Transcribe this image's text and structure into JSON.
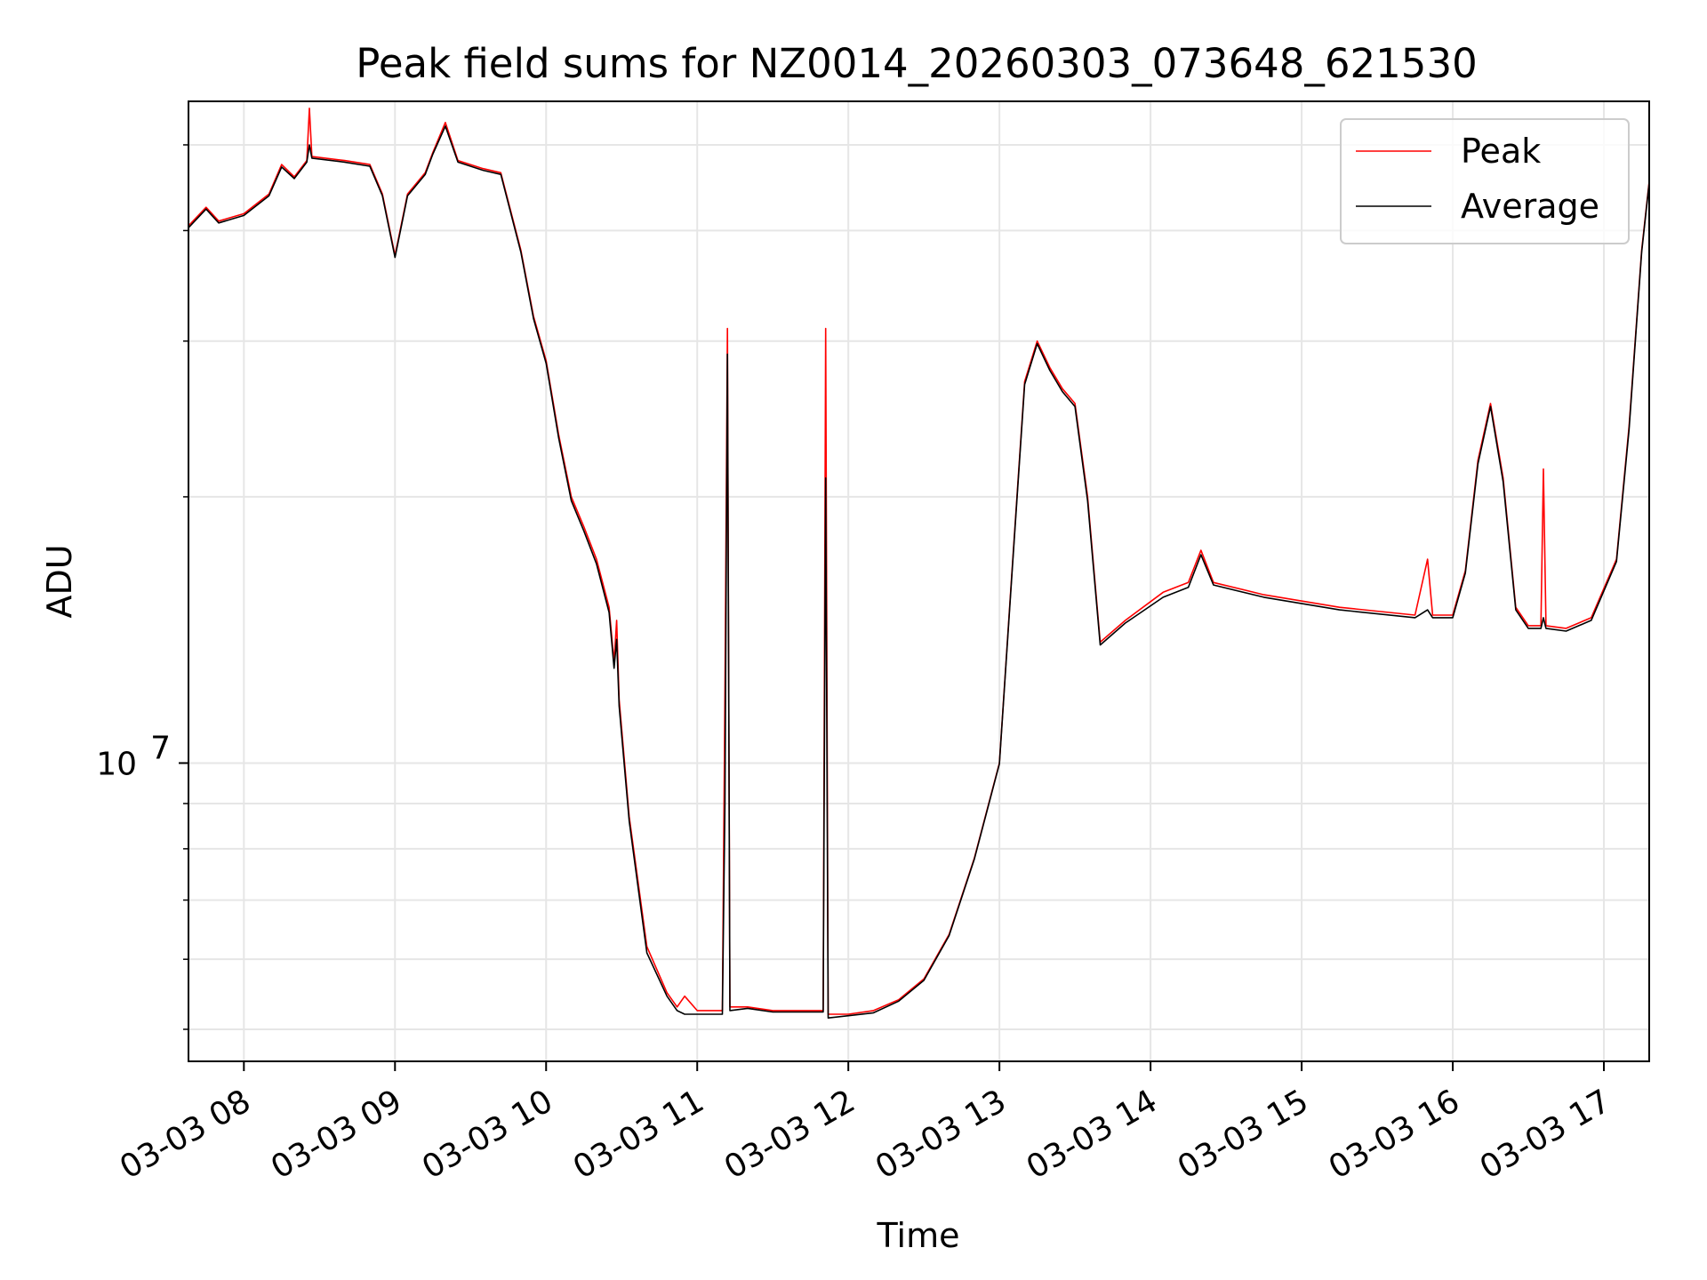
{
  "chart_data": {
    "type": "line",
    "title": "Peak field sums for NZ0014_20260303_073648_621530",
    "xlabel": "Time",
    "ylabel": "ADU",
    "yscale": "log",
    "grid": true,
    "legend_position": "top-right",
    "xlim": [
      "2026-03-03T07:38",
      "2026-03-03T17:18"
    ],
    "ylim": [
      4600000,
      56000000
    ],
    "x_ticks": [
      {
        "t": "2026-03-03T08:00",
        "label": "03-03 08"
      },
      {
        "t": "2026-03-03T09:00",
        "label": "03-03 09"
      },
      {
        "t": "2026-03-03T10:00",
        "label": "03-03 10"
      },
      {
        "t": "2026-03-03T11:00",
        "label": "03-03 11"
      },
      {
        "t": "2026-03-03T12:00",
        "label": "03-03 12"
      },
      {
        "t": "2026-03-03T13:00",
        "label": "03-03 13"
      },
      {
        "t": "2026-03-03T14:00",
        "label": "03-03 14"
      },
      {
        "t": "2026-03-03T15:00",
        "label": "03-03 15"
      },
      {
        "t": "2026-03-03T16:00",
        "label": "03-03 16"
      },
      {
        "t": "2026-03-03T17:00",
        "label": "03-03 17"
      }
    ],
    "y_major_ticks": [
      {
        "value": 10000000,
        "base": "10",
        "exp": "7"
      }
    ],
    "y_minor_ticks": [
      5000000,
      6000000,
      7000000,
      8000000,
      9000000,
      20000000,
      30000000,
      40000000,
      50000000
    ],
    "series": [
      {
        "name": "Peak",
        "color": "#ff0000",
        "points": [
          [
            "2026-03-03T07:38",
            40500000
          ],
          [
            "2026-03-03T07:45",
            42500000
          ],
          [
            "2026-03-03T07:50",
            41000000
          ],
          [
            "2026-03-03T08:00",
            41800000
          ],
          [
            "2026-03-03T08:10",
            44000000
          ],
          [
            "2026-03-03T08:15",
            47500000
          ],
          [
            "2026-03-03T08:20",
            46000000
          ],
          [
            "2026-03-03T08:25",
            48000000
          ],
          [
            "2026-03-03T08:26",
            55000000
          ],
          [
            "2026-03-03T08:27",
            48500000
          ],
          [
            "2026-03-03T08:40",
            48000000
          ],
          [
            "2026-03-03T08:50",
            47500000
          ],
          [
            "2026-03-03T08:55",
            44000000
          ],
          [
            "2026-03-03T09:00",
            37500000
          ],
          [
            "2026-03-03T09:05",
            44000000
          ],
          [
            "2026-03-03T09:12",
            46500000
          ],
          [
            "2026-03-03T09:15",
            49000000
          ],
          [
            "2026-03-03T09:20",
            53000000
          ],
          [
            "2026-03-03T09:25",
            48000000
          ],
          [
            "2026-03-03T09:35",
            47000000
          ],
          [
            "2026-03-03T09:42",
            46500000
          ],
          [
            "2026-03-03T09:50",
            38000000
          ],
          [
            "2026-03-03T09:55",
            32000000
          ],
          [
            "2026-03-03T10:00",
            28500000
          ],
          [
            "2026-03-03T10:05",
            23500000
          ],
          [
            "2026-03-03T10:10",
            20000000
          ],
          [
            "2026-03-03T10:15",
            18500000
          ],
          [
            "2026-03-03T10:20",
            17000000
          ],
          [
            "2026-03-03T10:25",
            15000000
          ],
          [
            "2026-03-03T10:27",
            13000000
          ],
          [
            "2026-03-03T10:28",
            14500000
          ],
          [
            "2026-03-03T10:29",
            11800000
          ],
          [
            "2026-03-03T10:33",
            8700000
          ],
          [
            "2026-03-03T10:40",
            6200000
          ],
          [
            "2026-03-03T10:48",
            5500000
          ],
          [
            "2026-03-03T10:52",
            5300000
          ],
          [
            "2026-03-03T10:55",
            5450000
          ],
          [
            "2026-03-03T11:00",
            5250000
          ],
          [
            "2026-03-03T11:10",
            5250000
          ],
          [
            "2026-03-03T11:11",
            12000000
          ],
          [
            "2026-03-03T11:12",
            31000000
          ],
          [
            "2026-03-03T11:13",
            5300000
          ],
          [
            "2026-03-03T11:20",
            5300000
          ],
          [
            "2026-03-03T11:30",
            5250000
          ],
          [
            "2026-03-03T11:50",
            5250000
          ],
          [
            "2026-03-03T11:51",
            31000000
          ],
          [
            "2026-03-03T11:52",
            5200000
          ],
          [
            "2026-03-03T12:00",
            5200000
          ],
          [
            "2026-03-03T12:10",
            5250000
          ],
          [
            "2026-03-03T12:20",
            5400000
          ],
          [
            "2026-03-03T12:30",
            5700000
          ],
          [
            "2026-03-03T12:40",
            6400000
          ],
          [
            "2026-03-03T12:50",
            7800000
          ],
          [
            "2026-03-03T13:00",
            10000000
          ],
          [
            "2026-03-03T13:05",
            16500000
          ],
          [
            "2026-03-03T13:10",
            27000000
          ],
          [
            "2026-03-03T13:15",
            30000000
          ],
          [
            "2026-03-03T13:20",
            28000000
          ],
          [
            "2026-03-03T13:25",
            26500000
          ],
          [
            "2026-03-03T13:30",
            25500000
          ],
          [
            "2026-03-03T13:35",
            20000000
          ],
          [
            "2026-03-03T13:40",
            13700000
          ],
          [
            "2026-03-03T13:50",
            14500000
          ],
          [
            "2026-03-03T14:05",
            15600000
          ],
          [
            "2026-03-03T14:15",
            16000000
          ],
          [
            "2026-03-03T14:20",
            17400000
          ],
          [
            "2026-03-03T14:25",
            16000000
          ],
          [
            "2026-03-03T14:45",
            15500000
          ],
          [
            "2026-03-03T15:15",
            15000000
          ],
          [
            "2026-03-03T15:45",
            14700000
          ],
          [
            "2026-03-03T15:50",
            17000000
          ],
          [
            "2026-03-03T15:52",
            14700000
          ],
          [
            "2026-03-03T16:00",
            14700000
          ],
          [
            "2026-03-03T16:05",
            16500000
          ],
          [
            "2026-03-03T16:10",
            22000000
          ],
          [
            "2026-03-03T16:15",
            25500000
          ],
          [
            "2026-03-03T16:20",
            21000000
          ],
          [
            "2026-03-03T16:25",
            15000000
          ],
          [
            "2026-03-03T16:30",
            14300000
          ],
          [
            "2026-03-03T16:35",
            14300000
          ],
          [
            "2026-03-03T16:36",
            21500000
          ],
          [
            "2026-03-03T16:37",
            14300000
          ],
          [
            "2026-03-03T16:45",
            14200000
          ],
          [
            "2026-03-03T16:55",
            14600000
          ],
          [
            "2026-03-03T17:05",
            17000000
          ],
          [
            "2026-03-03T17:10",
            24000000
          ],
          [
            "2026-03-03T17:15",
            38000000
          ],
          [
            "2026-03-03T17:18",
            45500000
          ]
        ]
      },
      {
        "name": "Average",
        "color": "#000000",
        "points": [
          [
            "2026-03-03T07:38",
            40300000
          ],
          [
            "2026-03-03T07:45",
            42300000
          ],
          [
            "2026-03-03T07:50",
            40800000
          ],
          [
            "2026-03-03T08:00",
            41600000
          ],
          [
            "2026-03-03T08:10",
            43800000
          ],
          [
            "2026-03-03T08:15",
            47200000
          ],
          [
            "2026-03-03T08:20",
            45800000
          ],
          [
            "2026-03-03T08:25",
            47800000
          ],
          [
            "2026-03-03T08:26",
            50000000
          ],
          [
            "2026-03-03T08:27",
            48300000
          ],
          [
            "2026-03-03T08:40",
            47800000
          ],
          [
            "2026-03-03T08:50",
            47300000
          ],
          [
            "2026-03-03T08:55",
            43800000
          ],
          [
            "2026-03-03T09:00",
            37300000
          ],
          [
            "2026-03-03T09:05",
            43800000
          ],
          [
            "2026-03-03T09:12",
            46300000
          ],
          [
            "2026-03-03T09:15",
            48800000
          ],
          [
            "2026-03-03T09:20",
            52500000
          ],
          [
            "2026-03-03T09:25",
            47800000
          ],
          [
            "2026-03-03T09:35",
            46800000
          ],
          [
            "2026-03-03T09:42",
            46300000
          ],
          [
            "2026-03-03T09:50",
            37800000
          ],
          [
            "2026-03-03T09:55",
            31800000
          ],
          [
            "2026-03-03T10:00",
            28300000
          ],
          [
            "2026-03-03T10:05",
            23300000
          ],
          [
            "2026-03-03T10:10",
            19800000
          ],
          [
            "2026-03-03T10:15",
            18300000
          ],
          [
            "2026-03-03T10:20",
            16800000
          ],
          [
            "2026-03-03T10:25",
            14800000
          ],
          [
            "2026-03-03T10:27",
            12800000
          ],
          [
            "2026-03-03T10:28",
            13800000
          ],
          [
            "2026-03-03T10:29",
            11600000
          ],
          [
            "2026-03-03T10:33",
            8600000
          ],
          [
            "2026-03-03T10:40",
            6100000
          ],
          [
            "2026-03-03T10:48",
            5450000
          ],
          [
            "2026-03-03T10:52",
            5250000
          ],
          [
            "2026-03-03T10:55",
            5200000
          ],
          [
            "2026-03-03T11:00",
            5200000
          ],
          [
            "2026-03-03T11:10",
            5200000
          ],
          [
            "2026-03-03T11:11",
            9000000
          ],
          [
            "2026-03-03T11:12",
            29000000
          ],
          [
            "2026-03-03T11:13",
            5250000
          ],
          [
            "2026-03-03T11:20",
            5280000
          ],
          [
            "2026-03-03T11:30",
            5230000
          ],
          [
            "2026-03-03T11:50",
            5230000
          ],
          [
            "2026-03-03T11:51",
            21000000
          ],
          [
            "2026-03-03T11:52",
            5150000
          ],
          [
            "2026-03-03T12:00",
            5180000
          ],
          [
            "2026-03-03T12:10",
            5220000
          ],
          [
            "2026-03-03T12:20",
            5380000
          ],
          [
            "2026-03-03T12:30",
            5680000
          ],
          [
            "2026-03-03T12:40",
            6380000
          ],
          [
            "2026-03-03T12:50",
            7780000
          ],
          [
            "2026-03-03T13:00",
            9980000
          ],
          [
            "2026-03-03T13:05",
            16400000
          ],
          [
            "2026-03-03T13:10",
            26800000
          ],
          [
            "2026-03-03T13:15",
            29800000
          ],
          [
            "2026-03-03T13:20",
            27800000
          ],
          [
            "2026-03-03T13:25",
            26300000
          ],
          [
            "2026-03-03T13:30",
            25300000
          ],
          [
            "2026-03-03T13:35",
            19800000
          ],
          [
            "2026-03-03T13:40",
            13600000
          ],
          [
            "2026-03-03T13:50",
            14400000
          ],
          [
            "2026-03-03T14:05",
            15400000
          ],
          [
            "2026-03-03T14:15",
            15800000
          ],
          [
            "2026-03-03T14:20",
            17200000
          ],
          [
            "2026-03-03T14:25",
            15900000
          ],
          [
            "2026-03-03T14:45",
            15400000
          ],
          [
            "2026-03-03T15:15",
            14900000
          ],
          [
            "2026-03-03T15:45",
            14600000
          ],
          [
            "2026-03-03T15:50",
            14900000
          ],
          [
            "2026-03-03T15:52",
            14600000
          ],
          [
            "2026-03-03T16:00",
            14600000
          ],
          [
            "2026-03-03T16:05",
            16400000
          ],
          [
            "2026-03-03T16:10",
            21800000
          ],
          [
            "2026-03-03T16:15",
            25300000
          ],
          [
            "2026-03-03T16:20",
            20800000
          ],
          [
            "2026-03-03T16:25",
            14900000
          ],
          [
            "2026-03-03T16:30",
            14200000
          ],
          [
            "2026-03-03T16:35",
            14200000
          ],
          [
            "2026-03-03T16:36",
            14600000
          ],
          [
            "2026-03-03T16:37",
            14200000
          ],
          [
            "2026-03-03T16:45",
            14100000
          ],
          [
            "2026-03-03T16:55",
            14500000
          ],
          [
            "2026-03-03T17:05",
            16900000
          ],
          [
            "2026-03-03T17:10",
            23800000
          ],
          [
            "2026-03-03T17:15",
            37800000
          ],
          [
            "2026-03-03T17:18",
            45300000
          ]
        ]
      }
    ]
  }
}
